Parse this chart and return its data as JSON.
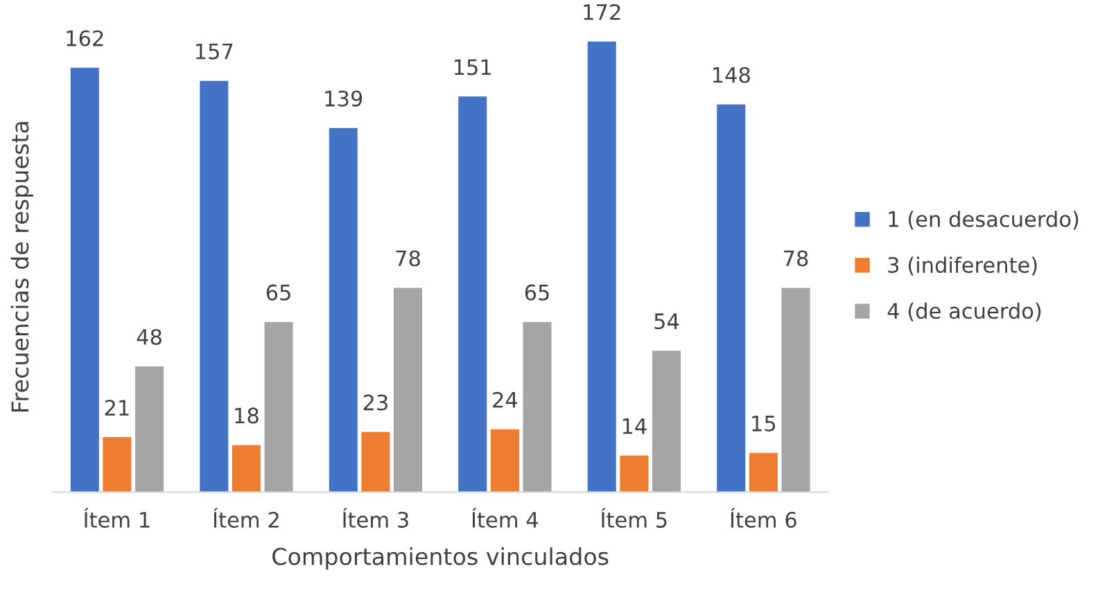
{
  "chart_data": {
    "type": "bar",
    "xlabel": "Comportamientos vinculados",
    "ylabel": "Frecuencias de respuesta",
    "categories": [
      "Ítem 1",
      "Ítem 2",
      "Ítem 3",
      "Ítem 4",
      "Ítem 5",
      "Ítem 6"
    ],
    "series": [
      {
        "name": "1 (en desacuerdo)",
        "color": "#4472c4",
        "values": [
          162,
          157,
          139,
          151,
          172,
          148
        ]
      },
      {
        "name": "3 (indiferente)",
        "color": "#ed7d31",
        "values": [
          21,
          18,
          23,
          24,
          14,
          15
        ]
      },
      {
        "name": "4 (de acuerdo)",
        "color": "#a5a5a5",
        "values": [
          48,
          65,
          78,
          65,
          54,
          78
        ]
      }
    ],
    "data_labels": true,
    "legend": "right",
    "grid": false,
    "tick_labels": "x"
  }
}
